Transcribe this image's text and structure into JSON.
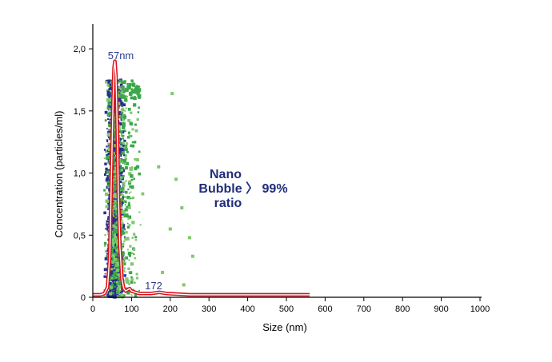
{
  "chart_data": {
    "type": "scatter",
    "xlabel": "Size (nm)",
    "ylabel": "Concentration (particles/ml)",
    "xlim": [
      0,
      1000
    ],
    "ylim": [
      0,
      2.2
    ],
    "x_ticks": [
      {
        "value": 0,
        "label": "0"
      },
      {
        "value": 100,
        "label": "100"
      },
      {
        "value": 200,
        "label": "200"
      },
      {
        "value": 300,
        "label": "300"
      },
      {
        "value": 400,
        "label": "400"
      },
      {
        "value": 500,
        "label": "500"
      },
      {
        "value": 600,
        "label": "600"
      },
      {
        "value": 700,
        "label": "700"
      },
      {
        "value": 800,
        "label": "800"
      },
      {
        "value": 900,
        "label": "900"
      },
      {
        "value": 1000,
        "label": "1000"
      }
    ],
    "y_ticks": [
      {
        "value": 0,
        "label": "0"
      },
      {
        "value": 0.5,
        "label": "0,5"
      },
      {
        "value": 1.0,
        "label": "1,0"
      },
      {
        "value": 1.5,
        "label": "1,5"
      },
      {
        "value": 2.0,
        "label": "2,0"
      }
    ],
    "series": [
      {
        "name": "size distribution",
        "kind": "line",
        "x": [
          0,
          20,
          30,
          38,
          44,
          48,
          52,
          55,
          57,
          60,
          63,
          66,
          70,
          75,
          80,
          85,
          90,
          95,
          100,
          110,
          120,
          130,
          150,
          172,
          190,
          250,
          350,
          450,
          560
        ],
        "y": [
          0.02,
          0.02,
          0.03,
          0.08,
          0.35,
          0.95,
          1.55,
          1.85,
          1.9,
          1.78,
          1.35,
          0.85,
          0.4,
          0.15,
          0.07,
          0.05,
          0.06,
          0.07,
          0.05,
          0.04,
          0.03,
          0.03,
          0.03,
          0.04,
          0.03,
          0.02,
          0.02,
          0.02,
          0.02
        ]
      },
      {
        "name": "particle tracks (dark blue)",
        "kind": "points",
        "x_range": [
          15,
          160
        ],
        "y_range": [
          0.0,
          1.75
        ]
      },
      {
        "name": "particle tracks (green)",
        "kind": "points",
        "x_range": [
          15,
          270
        ],
        "y_range": [
          0.0,
          1.75
        ]
      }
    ],
    "annotations": [
      {
        "text": "57nm",
        "x": 57,
        "y": 1.9
      },
      {
        "text": "172",
        "x": 172,
        "y": 0.05
      }
    ],
    "colors": {
      "blue": "#2a2f8c",
      "green": "#3aa84a",
      "light_green": "#7fc96e",
      "curve": "#d9141b",
      "text": "#1f2d7a"
    }
  },
  "annotation_text": {
    "line1": "Nano",
    "line2": "Bubble 〉 99%",
    "line3": "ratio"
  }
}
